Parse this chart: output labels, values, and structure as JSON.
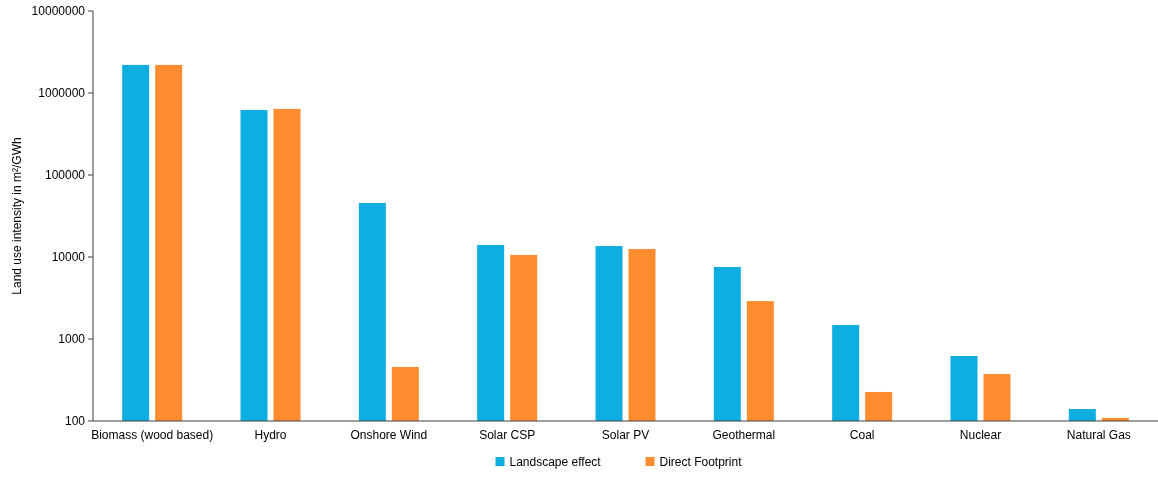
{
  "chart_data": {
    "type": "bar",
    "ylabel": "Land use intensity in m²/GWh",
    "log": true,
    "grid": false,
    "legend": "bottom",
    "categories": [
      "Biomass (wood based)",
      "Hydro",
      "Onshore Wind",
      "Solar CSP",
      "Solar PV",
      "Geothermal",
      "Coal",
      "Nuclear",
      "Natural Gas"
    ],
    "ylim": [
      100,
      10000000
    ],
    "yticks": [
      100,
      1000,
      10000,
      100000,
      1000000,
      10000000
    ],
    "series": [
      {
        "name": "Landscape effect",
        "color": "#0eaee0",
        "values": [
          2200000,
          620000,
          45600,
          14000,
          13600,
          7550,
          1480,
          620,
          140
        ]
      },
      {
        "name": "Direct Footprint",
        "color": "#ff8c2e",
        "values": [
          2200000,
          640000,
          456,
          10600,
          12500,
          2900,
          226,
          374,
          109
        ]
      }
    ]
  }
}
